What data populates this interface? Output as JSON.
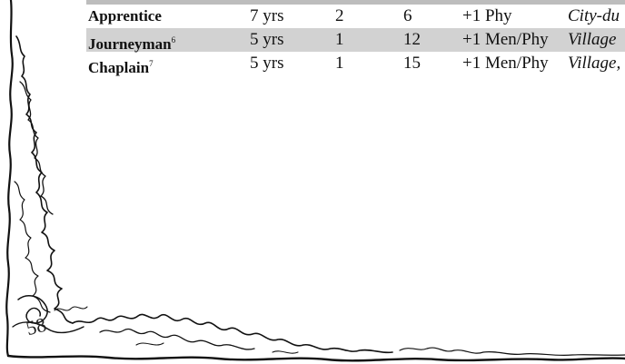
{
  "table": {
    "rows": [
      {
        "name": "Apprentice",
        "footnote": "",
        "term": "7 yrs",
        "col_a": "2",
        "col_b": "6",
        "modifier": "+1 Phy",
        "environment": "City-du",
        "shaded": false
      },
      {
        "name": "Journeyman",
        "footnote": "6",
        "term": "5 yrs",
        "col_a": "1",
        "col_b": "12",
        "modifier": "+1 Men/Phy",
        "environment": "Village",
        "shaded": true
      },
      {
        "name": "Chaplain",
        "footnote": "7",
        "term": "5 yrs",
        "col_a": "1",
        "col_b": "15",
        "modifier": "+1 Men/Phy",
        "environment": "Village,",
        "shaded": false
      }
    ]
  },
  "page_number": "58"
}
